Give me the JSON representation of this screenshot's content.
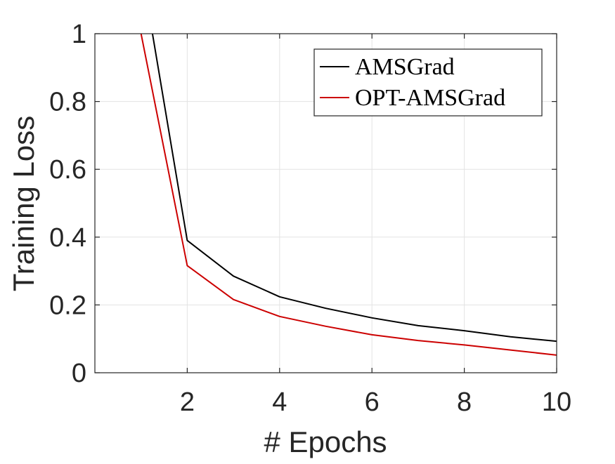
{
  "chart_data": {
    "type": "line",
    "title": "",
    "xlabel": "# Epochs",
    "ylabel": "Training Loss",
    "xlim": [
      0.0,
      10
    ],
    "ylim": [
      0,
      1
    ],
    "xticks": [
      2,
      4,
      6,
      8,
      10
    ],
    "yticks": [
      0,
      0.2,
      0.4,
      0.6,
      0.8,
      1
    ],
    "ytick_labels": [
      "0",
      "0.2",
      "0.4",
      "0.6",
      "0.8",
      "1"
    ],
    "grid": true,
    "legend_position": "top-right",
    "x": [
      1,
      2,
      3,
      4,
      5,
      6,
      7,
      8,
      9,
      10
    ],
    "series": [
      {
        "name": "AMSGrad",
        "color": "#000000",
        "values": [
          1.2,
          0.39,
          0.285,
          0.224,
          0.19,
          0.162,
          0.139,
          0.124,
          0.106,
          0.093
        ]
      },
      {
        "name": "OPT-AMSGrad",
        "color": "#cc0000",
        "values": [
          1.0,
          0.316,
          0.216,
          0.166,
          0.137,
          0.112,
          0.095,
          0.082,
          0.067,
          0.052
        ]
      }
    ]
  }
}
